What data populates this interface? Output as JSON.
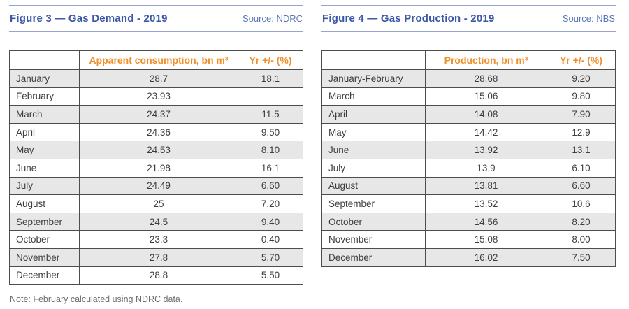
{
  "colors": {
    "title_blue": "#3c57a6",
    "source_blue": "#5b77bb",
    "rule_blue": "#98a4cd",
    "header_orange": "#ef8f2a",
    "table_border_gray": "#4d4d4d",
    "row_alt_gray": "#e7e7e7",
    "cell_text": "#3e3e3e",
    "note_gray": "#6e6e6e"
  },
  "figures": [
    {
      "id": "figure-3",
      "title": "Figure 3 — Gas Demand - 2019",
      "source": "Source: NDRC",
      "columns": [
        "",
        "Apparent consumption, bn m³",
        "Yr +/- (%)"
      ],
      "rows": [
        [
          "January",
          "28.7",
          "18.1"
        ],
        [
          "February",
          "23.93",
          ""
        ],
        [
          "March",
          "24.37",
          "11.5"
        ],
        [
          "April",
          "24.36",
          "9.50"
        ],
        [
          "May",
          "24.53",
          "8.10"
        ],
        [
          "June",
          "21.98",
          "16.1"
        ],
        [
          "July",
          "24.49",
          "6.60"
        ],
        [
          "August",
          "25",
          "7.20"
        ],
        [
          "September",
          "24.5",
          "9.40"
        ],
        [
          "October",
          "23.3",
          "0.40"
        ],
        [
          "November",
          "27.8",
          "5.70"
        ],
        [
          "December",
          "28.8",
          "5.50"
        ]
      ]
    },
    {
      "id": "figure-4",
      "title": "Figure 4 — Gas Production - 2019",
      "source": "Source: NBS",
      "columns": [
        "",
        "Production, bn m³",
        "Yr +/- (%)"
      ],
      "rows": [
        [
          "January-February",
          "28.68",
          "9.20"
        ],
        [
          "March",
          "15.06",
          "9.80"
        ],
        [
          "April",
          "14.08",
          "7.90"
        ],
        [
          "May",
          "14.42",
          "12.9"
        ],
        [
          "June",
          "13.92",
          "13.1"
        ],
        [
          "July",
          "13.9",
          "6.10"
        ],
        [
          "August",
          "13.81",
          "6.60"
        ],
        [
          "September",
          "13.52",
          "10.6"
        ],
        [
          "October",
          "14.56",
          "8.20"
        ],
        [
          "November",
          "15.08",
          "8.00"
        ],
        [
          "December",
          "16.02",
          "7.50"
        ]
      ]
    }
  ],
  "note": "Note: February calculated using NDRC data."
}
